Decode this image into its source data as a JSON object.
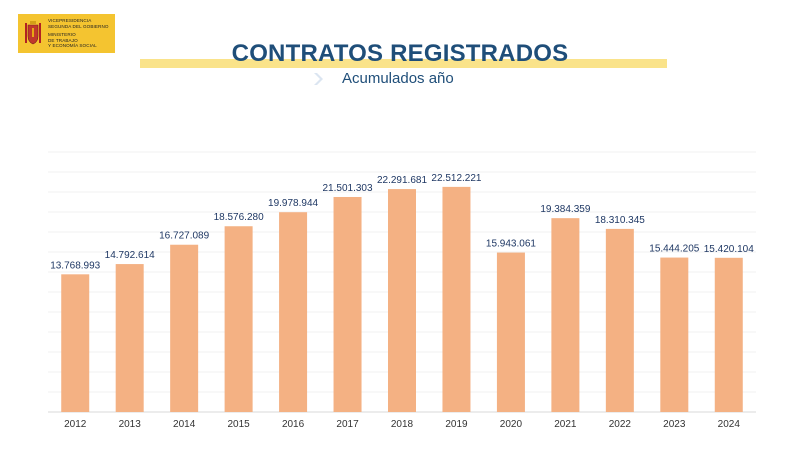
{
  "header": {
    "logo_lines": [
      "VICEPRESIDENCIA",
      "SEGUNDA DEL GOBIERNO",
      "",
      "MINISTERIO",
      "DE TRABAJO",
      "Y ECONOMÍA SOCIAL"
    ],
    "title": "CONTRATOS REGISTRADOS",
    "subtitle": "Acumulados  año"
  },
  "colors": {
    "bar": "#f4b183",
    "title": "#1f4e79",
    "band": "#fae38a",
    "logo_bg": "#f4c430"
  },
  "chart_data": {
    "type": "bar",
    "title": "CONTRATOS REGISTRADOS",
    "subtitle": "Acumulados  año",
    "categories": [
      "2012",
      "2013",
      "2014",
      "2015",
      "2016",
      "2017",
      "2018",
      "2019",
      "2020",
      "2021",
      "2022",
      "2023",
      "2024"
    ],
    "values": [
      13768993,
      14792614,
      16727089,
      18576280,
      19978944,
      21501303,
      22291681,
      22512221,
      15943061,
      19384359,
      18310345,
      15444205,
      15420104
    ],
    "labels": [
      "13.768.993",
      "14.792.614",
      "16.727.089",
      "18.576.280",
      "19.978.944",
      "21.501.303",
      "22.291.681",
      "22.512.221",
      "15.943.061",
      "19.384.359",
      "18.310.345",
      "15.444.205",
      "15.420.104"
    ],
    "ylim": [
      0,
      26000000
    ],
    "grid": true,
    "xlabel": "",
    "ylabel": ""
  }
}
